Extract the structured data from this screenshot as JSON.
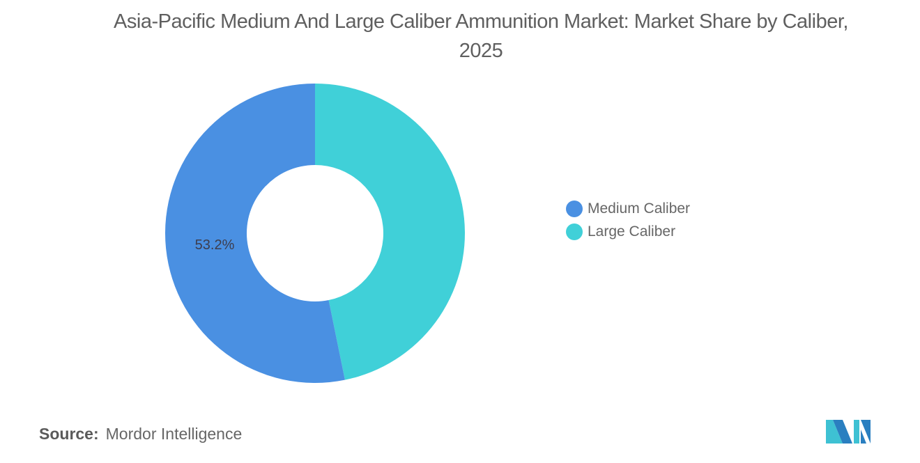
{
  "title": "Asia-Pacific Medium And Large Caliber Ammunition Market: Market Share by Caliber, 2025",
  "chart_data": {
    "type": "pie",
    "subtype": "donut",
    "title": "Asia-Pacific Medium And Large Caliber Ammunition Market: Market Share by Caliber, 2025",
    "categories": [
      "Medium Caliber",
      "Large Caliber"
    ],
    "values": [
      53.2,
      46.8
    ],
    "colors": [
      "#4a90e2",
      "#40d0d8"
    ],
    "data_labels": [
      "53.2%",
      ""
    ],
    "legend_position": "right"
  },
  "legend": {
    "items": [
      {
        "label": "Medium Caliber",
        "color": "#4a90e2"
      },
      {
        "label": "Large Caliber",
        "color": "#40d0d8"
      }
    ]
  },
  "labels": {
    "medium": "53.2%"
  },
  "source": {
    "prefix": "Source:",
    "name": "Mordor Intelligence"
  },
  "logo": {
    "name": "mordor-intelligence-logo"
  }
}
